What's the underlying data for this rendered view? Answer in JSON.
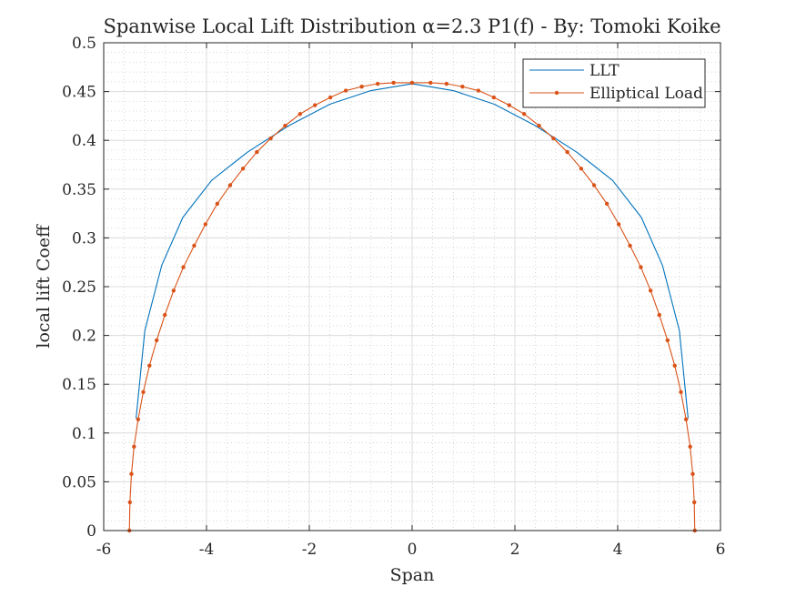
{
  "chart_data": {
    "type": "line",
    "title": "Spanwise Local Lift Distribution α=2.3 P1(f) - By: Tomoki Koike",
    "xlabel": "Span",
    "ylabel": "local lift Coeff",
    "xlim": [
      -6,
      6
    ],
    "ylim": [
      0,
      0.5
    ],
    "xticks": [
      -6,
      -4,
      -2,
      0,
      2,
      4,
      6
    ],
    "yticks": [
      0,
      0.05,
      0.1,
      0.15,
      0.2,
      0.25,
      0.3,
      0.35,
      0.4,
      0.45,
      0.5
    ],
    "grid": true,
    "minor_grid": true,
    "legend": {
      "placement": "top-right",
      "entries": [
        "LLT",
        "Elliptical Load"
      ]
    },
    "series": [
      {
        "name": "LLT",
        "color": "#0072BD",
        "marker": "none",
        "x": [
          -5.37,
          -5.2,
          -4.87,
          -4.46,
          -3.9,
          -3.2,
          -2.4,
          -1.6,
          -0.8,
          0,
          0.8,
          1.6,
          2.4,
          3.2,
          3.9,
          4.46,
          4.87,
          5.2,
          5.37
        ],
        "y": [
          0.115,
          0.205,
          0.272,
          0.321,
          0.359,
          0.388,
          0.415,
          0.437,
          0.451,
          0.458,
          0.451,
          0.437,
          0.415,
          0.388,
          0.359,
          0.321,
          0.272,
          0.205,
          0.115
        ]
      },
      {
        "name": "Elliptical Load",
        "color": "#D95319",
        "marker": "dot",
        "x": [
          -5.5,
          -5.49,
          -5.46,
          -5.41,
          -5.33,
          -5.23,
          -5.11,
          -4.97,
          -4.81,
          -4.64,
          -4.45,
          -4.24,
          -4.02,
          -3.79,
          -3.54,
          -3.29,
          -3.02,
          -2.75,
          -2.47,
          -2.18,
          -1.89,
          -1.59,
          -1.29,
          -0.98,
          -0.67,
          -0.36,
          0,
          0.36,
          0.67,
          0.98,
          1.29,
          1.59,
          1.89,
          2.18,
          2.47,
          2.75,
          3.02,
          3.29,
          3.54,
          3.79,
          4.02,
          4.24,
          4.45,
          4.64,
          4.81,
          4.97,
          5.11,
          5.23,
          5.33,
          5.41,
          5.46,
          5.49,
          5.5
        ],
        "y": [
          0,
          0.029,
          0.058,
          0.086,
          0.114,
          0.142,
          0.169,
          0.195,
          0.221,
          0.246,
          0.27,
          0.292,
          0.314,
          0.335,
          0.354,
          0.371,
          0.388,
          0.402,
          0.415,
          0.427,
          0.436,
          0.444,
          0.451,
          0.455,
          0.458,
          0.459,
          0.459,
          0.459,
          0.458,
          0.455,
          0.451,
          0.444,
          0.436,
          0.427,
          0.415,
          0.402,
          0.388,
          0.371,
          0.354,
          0.335,
          0.314,
          0.292,
          0.27,
          0.246,
          0.221,
          0.195,
          0.169,
          0.142,
          0.114,
          0.086,
          0.058,
          0.029,
          0
        ]
      }
    ]
  }
}
